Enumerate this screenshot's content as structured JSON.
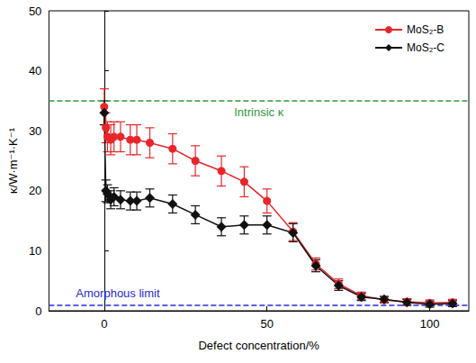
{
  "chart_data": {
    "type": "line",
    "x_label": "Defect concentration/%",
    "y_label": "κ/W·m⁻¹·K⁻¹",
    "x": [
      0,
      0.5,
      1,
      2,
      3,
      5,
      8,
      10,
      14,
      21,
      28,
      36,
      43,
      50,
      58,
      65,
      72,
      79,
      86,
      93,
      100,
      107
    ],
    "series": [
      {
        "name": "MoS₂-B",
        "color": "#e8262a",
        "marker": "circle",
        "line_style": "solid",
        "values": [
          34,
          30.5,
          29,
          28.5,
          29,
          29,
          28.5,
          28.5,
          28,
          27,
          25,
          23.3,
          21.5,
          18.3,
          13.2,
          7.8,
          4.5,
          2.5,
          1.8,
          1.5,
          1.3,
          1.4
        ],
        "errors": [
          3,
          2.5,
          2.5,
          2.5,
          2.5,
          2.5,
          2.5,
          2.5,
          2.5,
          2.5,
          2.5,
          2.5,
          2.5,
          2,
          1.5,
          1,
          0.8,
          0.6,
          0.5,
          0.5,
          0.5,
          0.5
        ]
      },
      {
        "name": "MoS₂-C",
        "color": "#111111",
        "marker": "diamond",
        "line_style": "solid",
        "values": [
          33,
          20,
          19.5,
          18.5,
          19,
          18.5,
          18.3,
          18.3,
          18.8,
          17.8,
          16,
          14,
          14.3,
          14.3,
          13,
          7.5,
          4.2,
          2.3,
          1.9,
          1.4,
          1.1,
          1.2
        ],
        "errors": [
          2,
          1.8,
          1.5,
          1.5,
          1.5,
          1.5,
          1.5,
          1.5,
          1.5,
          1.5,
          1.5,
          1.5,
          1.5,
          1.5,
          1.5,
          1,
          0.8,
          0.6,
          0.5,
          0.5,
          0.5,
          0.5
        ]
      }
    ],
    "annotations": [
      {
        "text": "Intrinsic κ",
        "y": 35,
        "color": "#2e9a3a",
        "line_style": "dashed"
      },
      {
        "text": "Amorphous limit",
        "y": 1,
        "color": "#2a2ad8",
        "line_style": "dashed"
      }
    ],
    "xlim": [
      -17,
      112
    ],
    "xticks": [
      0,
      50,
      100
    ],
    "ylim": [
      0,
      50
    ],
    "yticks": [
      0,
      10,
      20,
      30,
      40,
      50
    ],
    "grid": false,
    "legend": "upper right"
  }
}
